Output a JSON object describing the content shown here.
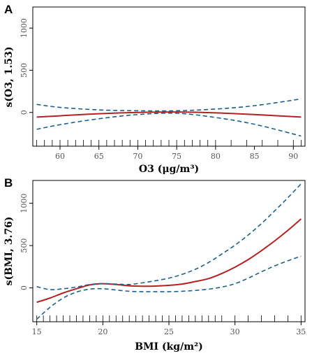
{
  "chart_data": [
    {
      "type": "line",
      "panel": "A",
      "xlabel": "O3 (μg/m³)",
      "ylabel": "s(O3, 1.53)",
      "xlim": [
        56.5,
        91.5
      ],
      "ylim": [
        -400,
        1250
      ],
      "x_ticks": [
        60,
        65,
        70,
        75,
        80,
        85,
        90
      ],
      "y_ticks": [
        0,
        500,
        1000
      ],
      "grid": false,
      "colors": {
        "fit": "#b22222",
        "ci": "#1f5f8b"
      },
      "rug": [
        57,
        58,
        59,
        60,
        61,
        62,
        63,
        64,
        65,
        66,
        67,
        68,
        69,
        70,
        71,
        72,
        73,
        74,
        75,
        76,
        77,
        78,
        79,
        80,
        82,
        84,
        86,
        88,
        90,
        91
      ],
      "x": [
        57,
        60,
        65,
        70,
        75,
        80,
        85,
        91
      ],
      "series": [
        {
          "role": "fit",
          "values": [
            -55,
            -40,
            -15,
            0,
            5,
            -5,
            -25,
            -55
          ]
        },
        {
          "role": "upper",
          "values": [
            95,
            60,
            30,
            20,
            20,
            40,
            80,
            160
          ]
        },
        {
          "role": "lower",
          "values": [
            -200,
            -145,
            -75,
            -25,
            -10,
            -60,
            -140,
            -280
          ]
        }
      ]
    },
    {
      "type": "line",
      "panel": "B",
      "xlabel": "BMI (kg/m²)",
      "ylabel": "s(BMI, 3.76)",
      "xlim": [
        14.7,
        35.3
      ],
      "ylim": [
        -400,
        1270
      ],
      "x_ticks": [
        15,
        20,
        25,
        30,
        35
      ],
      "y_ticks": [
        0,
        500,
        1000
      ],
      "grid": false,
      "colors": {
        "fit": "#b22222",
        "ci": "#1f5f8b"
      },
      "rug": [
        15,
        15.5,
        16,
        16.5,
        17,
        17.5,
        18,
        18.5,
        19,
        19.5,
        20,
        20.5,
        21,
        21.5,
        22,
        22.5,
        23,
        23.5,
        24,
        24.5,
        25,
        25.5,
        26,
        26.5,
        27,
        27.5,
        28,
        28.5,
        29,
        30,
        31,
        32,
        33,
        34,
        35
      ],
      "x": [
        15,
        16,
        17,
        18,
        19,
        20,
        21,
        22,
        23,
        24,
        25,
        26,
        27,
        28,
        29,
        30,
        31,
        32,
        33,
        34,
        35
      ],
      "series": [
        {
          "role": "fit",
          "values": [
            -170,
            -120,
            -60,
            -10,
            35,
            50,
            40,
            25,
            20,
            22,
            30,
            45,
            75,
            110,
            170,
            245,
            335,
            440,
            555,
            680,
            815
          ]
        },
        {
          "role": "upper",
          "values": [
            15,
            -20,
            -10,
            10,
            40,
            50,
            45,
            40,
            60,
            85,
            115,
            160,
            220,
            300,
            400,
            505,
            625,
            760,
            910,
            1065,
            1230
          ]
        },
        {
          "role": "lower",
          "values": [
            -370,
            -230,
            -120,
            -50,
            -15,
            -10,
            -25,
            -40,
            -45,
            -45,
            -45,
            -40,
            -30,
            -15,
            10,
            50,
            115,
            190,
            260,
            320,
            375
          ]
        }
      ]
    }
  ]
}
